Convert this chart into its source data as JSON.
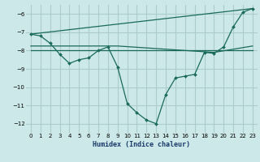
{
  "xlabel": "Humidex (Indice chaleur)",
  "xlim": [
    -0.5,
    23.5
  ],
  "ylim": [
    -12.5,
    -5.5
  ],
  "yticks": [
    -12,
    -11,
    -10,
    -9,
    -8,
    -7,
    -6
  ],
  "xticks": [
    0,
    1,
    2,
    3,
    4,
    5,
    6,
    7,
    8,
    9,
    10,
    11,
    12,
    13,
    14,
    15,
    16,
    17,
    18,
    19,
    20,
    21,
    22,
    23
  ],
  "bg_color": "#cce8e8",
  "grid_color": "#aacccc",
  "line_color": "#1a6a5a",
  "line1_x": [
    0,
    1,
    2,
    3,
    4,
    5,
    6,
    7,
    8,
    9,
    10,
    11,
    12,
    13,
    14,
    15,
    16,
    17,
    18,
    19,
    20,
    21,
    22,
    23
  ],
  "line1_y": [
    -7.1,
    -7.2,
    -7.6,
    -8.2,
    -8.7,
    -8.5,
    -8.4,
    -8.0,
    -7.8,
    -8.9,
    -10.9,
    -11.4,
    -11.8,
    -12.0,
    -10.4,
    -9.5,
    -9.4,
    -9.3,
    -8.1,
    -8.15,
    -7.8,
    -6.7,
    -5.9,
    -5.7
  ],
  "line2_x": [
    0,
    23
  ],
  "line2_y": [
    -7.1,
    -5.7
  ],
  "line3_x": [
    0,
    9,
    19,
    23
  ],
  "line3_y": [
    -7.75,
    -7.75,
    -8.1,
    -7.75
  ],
  "line4_x": [
    0,
    23
  ],
  "line4_y": [
    -8.0,
    -8.0
  ]
}
